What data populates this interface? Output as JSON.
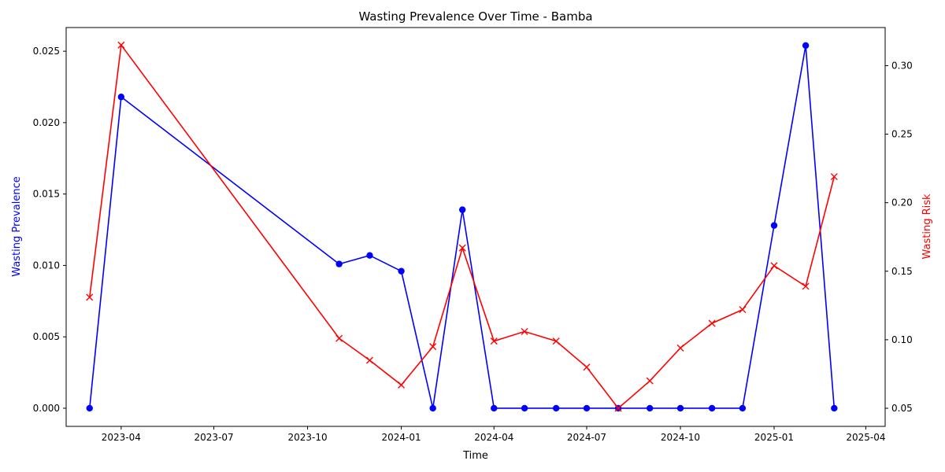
{
  "chart_data": {
    "type": "line",
    "title": "Wasting Prevalence Over Time - Bamba",
    "xlabel": "Time",
    "ylabel_left": "Wasting Prevalence",
    "ylabel_right": "Wasting Risk",
    "x_ticks": [
      "2023-04",
      "2023-07",
      "2023-10",
      "2024-01",
      "2024-04",
      "2024-07",
      "2024-10",
      "2025-01",
      "2025-04"
    ],
    "y_left_ticks": [
      "0.000",
      "0.005",
      "0.010",
      "0.015",
      "0.020",
      "0.025"
    ],
    "y_right_ticks": [
      "0.05",
      "0.10",
      "0.15",
      "0.20",
      "0.25",
      "0.30"
    ],
    "ylim_left": [
      -0.00127,
      0.02666
    ],
    "ylim_right": [
      0.0368,
      0.3278
    ],
    "x": [
      "2023-03-01",
      "2023-04-01",
      "2023-11-01",
      "2023-12-01",
      "2024-01-01",
      "2024-02-01",
      "2024-03-01",
      "2024-04-01",
      "2024-05-01",
      "2024-06-01",
      "2024-07-01",
      "2024-08-01",
      "2024-09-01",
      "2024-10-01",
      "2024-11-01",
      "2024-12-01",
      "2025-01-01",
      "2025-02-01",
      "2025-03-01"
    ],
    "series": [
      {
        "axis": "left",
        "color": "#0000ff",
        "marker": "circle",
        "values": [
          0.0,
          0.0218,
          0.0101,
          0.0107,
          0.0096,
          0.0,
          0.0139,
          0.0,
          0.0,
          0.0,
          0.0,
          0.0,
          0.0,
          0.0,
          0.0,
          0.0,
          0.0128,
          0.0254,
          0.0
        ]
      },
      {
        "axis": "right",
        "color": "#ff0000",
        "marker": "x",
        "values": [
          0.131,
          0.315,
          0.101,
          0.085,
          0.067,
          0.095,
          0.167,
          0.099,
          0.106,
          0.099,
          0.08,
          0.05,
          0.07,
          0.094,
          0.112,
          0.122,
          0.154,
          0.139,
          0.219
        ]
      }
    ]
  }
}
